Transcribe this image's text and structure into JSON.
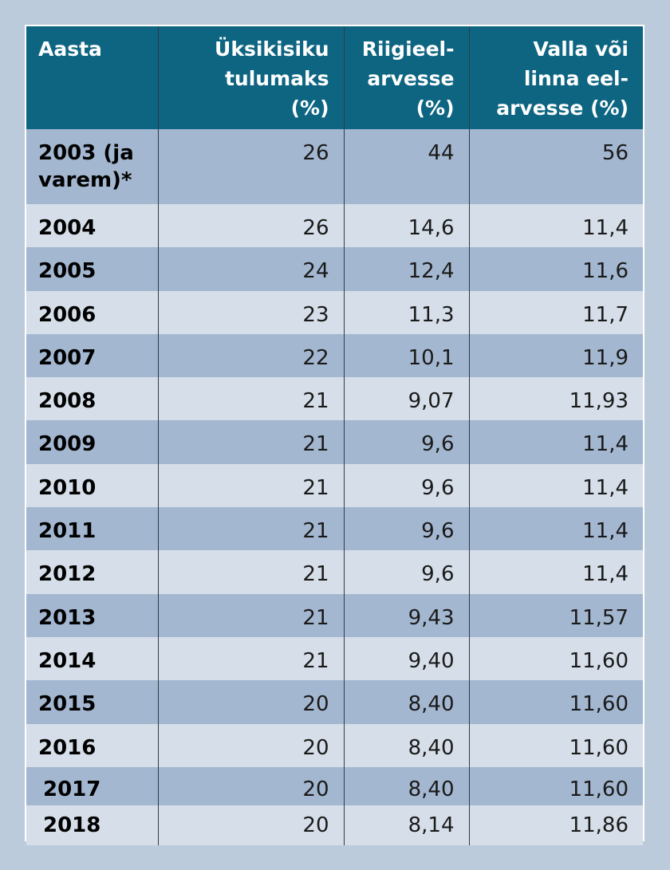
{
  "table": {
    "headers": {
      "year": "Aasta",
      "income_tax_line1": "Üksikisiku",
      "income_tax_line2": "tulumaks",
      "income_tax_line3": "(%)",
      "state_line1": "Riigieel-",
      "state_line2": "arvesse",
      "state_line3": "(%)",
      "local_line1": "Valla või",
      "local_line2": "linna eel-",
      "local_line3": "arvesse (%)"
    },
    "first_row": {
      "year_line1": "2003 (ja",
      "year_line2": "varem)*",
      "income_tax": "26",
      "state": "44",
      "local": "56"
    },
    "rows": [
      {
        "year": "2004",
        "income_tax": "26",
        "state": "14,6",
        "local": "11,4"
      },
      {
        "year": "2005",
        "income_tax": "24",
        "state": "12,4",
        "local": "11,6"
      },
      {
        "year": "2006",
        "income_tax": "23",
        "state": "11,3",
        "local": "11,7"
      },
      {
        "year": "2007",
        "income_tax": "22",
        "state": "10,1",
        "local": "11,9"
      },
      {
        "year": "2008",
        "income_tax": "21",
        "state": "9,07",
        "local": "11,93"
      },
      {
        "year": "2009",
        "income_tax": "21",
        "state": "9,6",
        "local": "11,4"
      },
      {
        "year": "2010",
        "income_tax": "21",
        "state": "9,6",
        "local": "11,4"
      },
      {
        "year": "2011",
        "income_tax": "21",
        "state": "9,6",
        "local": "11,4"
      },
      {
        "year": "2012",
        "income_tax": "21",
        "state": "9,6",
        "local": "11,4"
      },
      {
        "year": "2013",
        "income_tax": "21",
        "state": "9,43",
        "local": "11,57"
      },
      {
        "year": "2014",
        "income_tax": "21",
        "state": "9,40",
        "local": "11,60"
      },
      {
        "year": "2015",
        "income_tax": "20",
        "state": "8,40",
        "local": "11,60"
      },
      {
        "year": "2016",
        "income_tax": "20",
        "state": "8,40",
        "local": "11,60"
      },
      {
        "year": "2017",
        "income_tax": "20",
        "state": "8,40",
        "local": "11,60"
      },
      {
        "year": "2018",
        "income_tax": "20",
        "state": "8,14",
        "local": "11,86"
      }
    ]
  }
}
